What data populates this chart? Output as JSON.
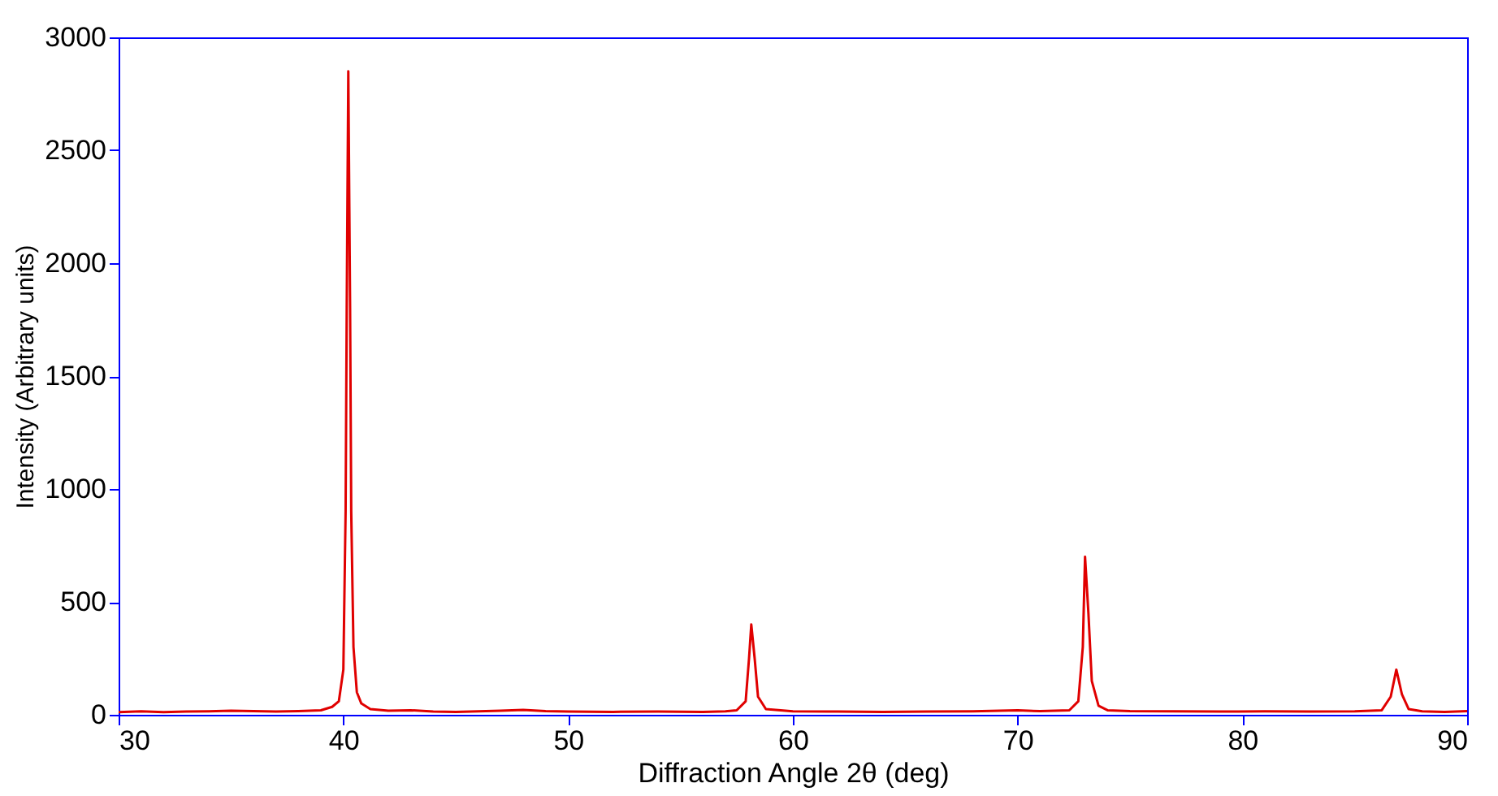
{
  "chart_data": {
    "type": "line",
    "xlabel": "Diffraction Angle 2θ (deg)",
    "ylabel": "Intensity (Arbitrary units)",
    "xlim": [
      30,
      90
    ],
    "xticks": [
      30,
      40,
      50,
      60,
      70,
      80,
      90
    ],
    "ylim": [
      0,
      3000
    ],
    "yticks": [
      0,
      500,
      1000,
      1500,
      2000,
      2500,
      3000
    ],
    "grid": false,
    "marker": "none",
    "line_style": "solid",
    "series": [
      {
        "color": "#e00000",
        "x": [
          30,
          31,
          32,
          33,
          34,
          35,
          36,
          37,
          38,
          38.5,
          39,
          39.5,
          39.8,
          40,
          40.1,
          40.15,
          40.22,
          40.3,
          40.35,
          40.45,
          40.6,
          40.8,
          41.2,
          42,
          43,
          44,
          45,
          46,
          47,
          48,
          49,
          50,
          52,
          54,
          56,
          57,
          57.5,
          57.9,
          58.05,
          58.15,
          58.3,
          58.45,
          58.8,
          60,
          62,
          64,
          66,
          68,
          70,
          71,
          72.3,
          72.7,
          72.9,
          73,
          73.15,
          73.3,
          73.6,
          74,
          75,
          77,
          79,
          81,
          83,
          85,
          86.2,
          86.6,
          86.85,
          87.1,
          87.4,
          88,
          89,
          90
        ],
        "values": [
          12,
          15,
          12,
          14,
          15,
          18,
          16,
          14,
          16,
          18,
          20,
          35,
          60,
          200,
          900,
          1800,
          2850,
          1800,
          900,
          300,
          100,
          50,
          25,
          18,
          20,
          14,
          13,
          15,
          18,
          22,
          16,
          14,
          13,
          14,
          13,
          15,
          20,
          60,
          250,
          400,
          250,
          80,
          25,
          15,
          14,
          13,
          14,
          15,
          20,
          16,
          20,
          60,
          300,
          700,
          450,
          150,
          40,
          20,
          16,
          15,
          14,
          15,
          14,
          15,
          20,
          80,
          200,
          90,
          25,
          15,
          13,
          16
        ]
      }
    ]
  }
}
